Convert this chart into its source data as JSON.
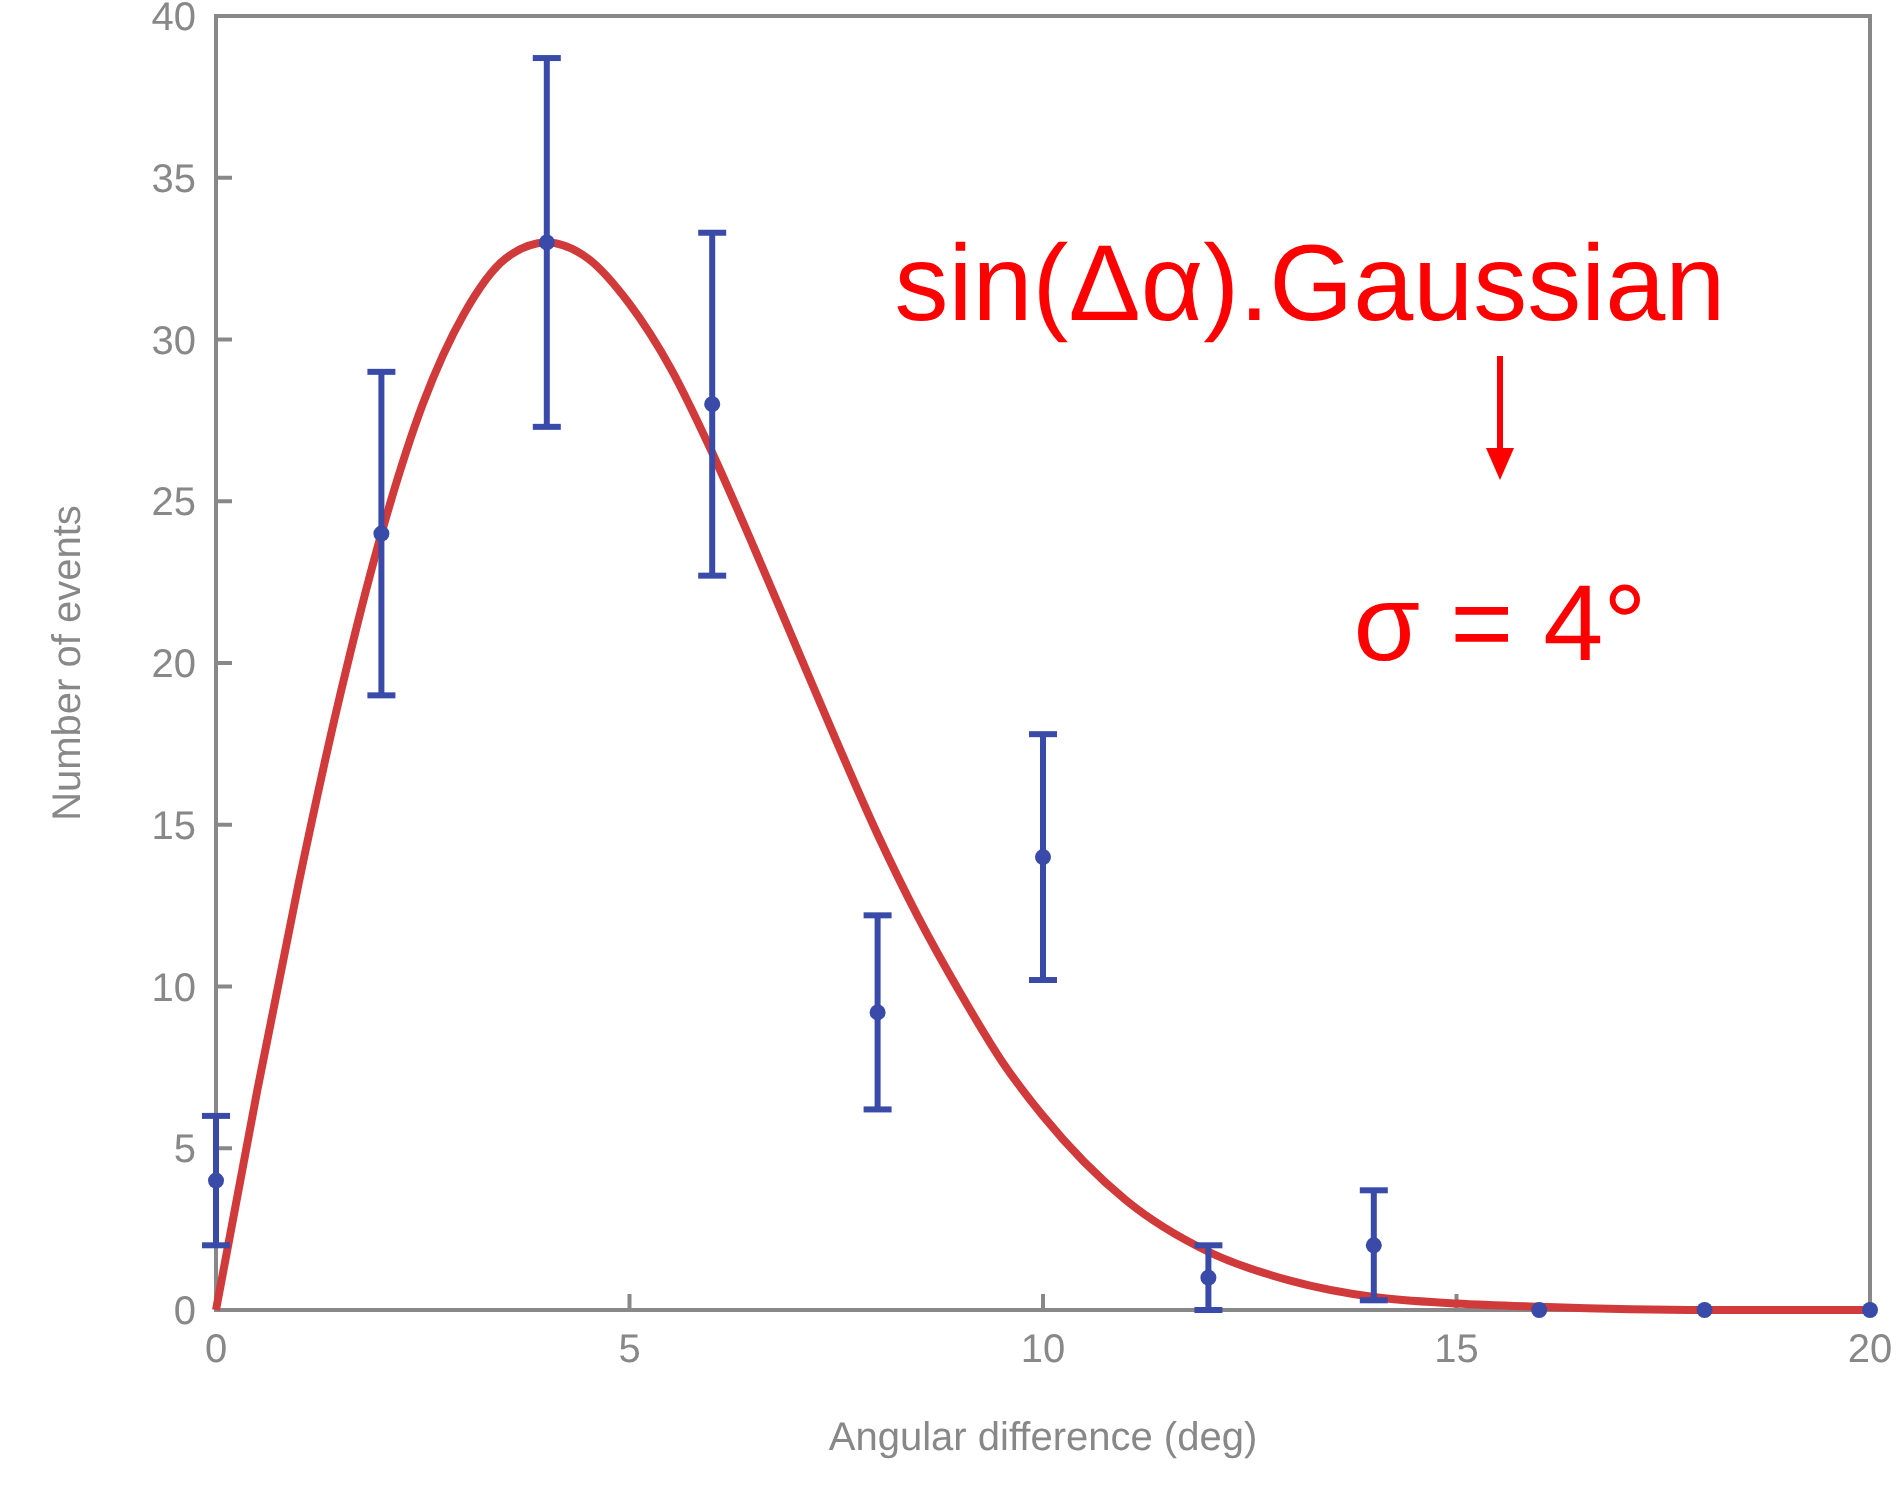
{
  "chart_data": {
    "type": "scatter",
    "xlabel": "Angular difference (deg)",
    "ylabel": "Number of events",
    "xlim": [
      0,
      20
    ],
    "xticks": [
      0,
      5,
      10,
      15,
      20
    ],
    "ylim": [
      0,
      40
    ],
    "yticks": [
      0,
      5,
      10,
      15,
      20,
      25,
      30,
      35,
      40
    ],
    "grid": false,
    "series": [
      {
        "type": "line",
        "color": "#d03a3a",
        "marker": "none",
        "line_style": "solid",
        "x": [
          0,
          0.5,
          1,
          1.5,
          2,
          2.5,
          3,
          3.5,
          4,
          4.5,
          5,
          5.5,
          6,
          6.5,
          7,
          7.5,
          8,
          8.5,
          9,
          9.5,
          10,
          11,
          12,
          13,
          14,
          15,
          16,
          18,
          20
        ],
        "values": [
          0,
          6.8,
          13.2,
          19,
          24,
          28,
          30.8,
          32.5,
          33,
          32.5,
          31.1,
          29.1,
          26.5,
          23.6,
          20.6,
          17.6,
          14.7,
          12.1,
          9.8,
          7.7,
          6,
          3.4,
          1.8,
          0.9,
          0.4,
          0.2,
          0.1,
          0,
          0
        ]
      },
      {
        "color": "#3a4aa8",
        "marker": "circle",
        "x": [
          0,
          2,
          4,
          6,
          8,
          10,
          12,
          14,
          16,
          18,
          20
        ],
        "values": [
          4,
          24,
          33,
          28,
          9.2,
          14,
          1,
          2,
          0,
          0,
          0
        ],
        "errors": [
          2,
          5,
          5.7,
          5.3,
          3,
          3.8,
          1,
          1.7,
          null,
          null,
          null
        ]
      }
    ],
    "annotations": [
      "sin(Δα).Gaussian",
      "σ = 4°"
    ]
  }
}
